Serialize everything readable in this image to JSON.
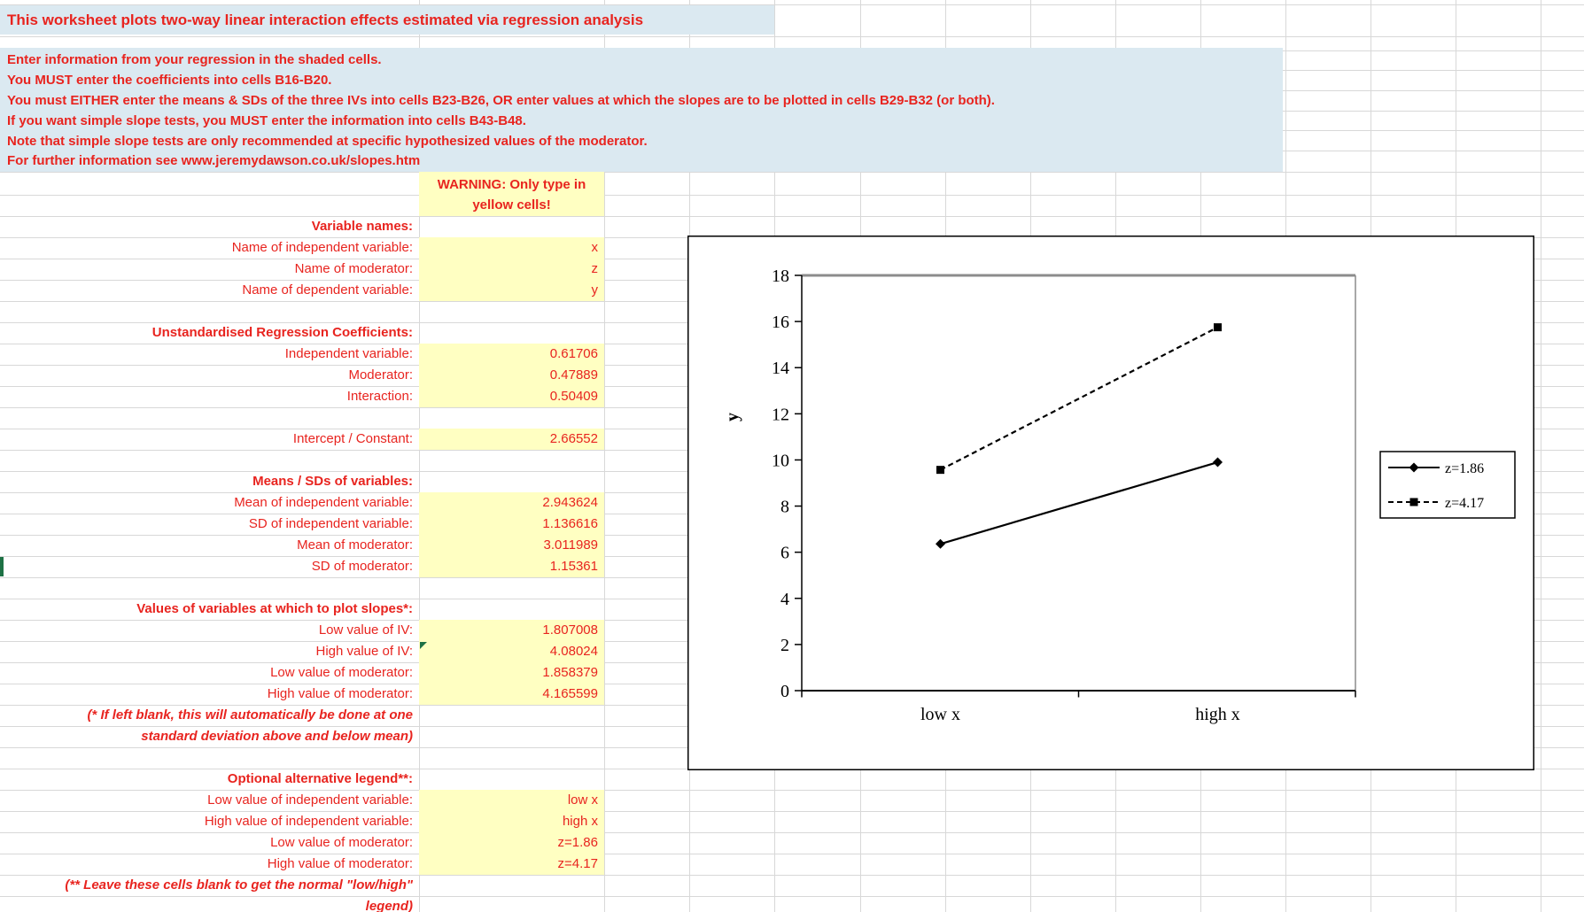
{
  "colors": {
    "text_red": "#e8241f",
    "band_blue": "#dbe9f1",
    "cell_yellow": "#ffffc2",
    "gridline_gray": "#d8d8d8",
    "marker_green": "#1e7145",
    "chart_frame_gray": "#8c8c8c",
    "series_black": "#000000"
  },
  "title": "This worksheet plots two-way linear interaction effects estimated via regression analysis",
  "instructions": [
    "Enter information from your regression in the shaded cells.",
    "You MUST enter the coefficients into cells B16-B20.",
    "You must EITHER enter the means & SDs of the three IVs into cells B23-B26, OR enter values at which the slopes are to be plotted in cells B29-B32 (or both).",
    "If you want simple slope tests, you MUST enter the information into cells B43-B48.",
    "Note that simple slope tests are only recommended at specific hypothesized values of the moderator.",
    "For further information see www.jeremydawson.co.uk/slopes.htm"
  ],
  "warning": {
    "line1": "WARNING: Only type in",
    "line2": "yellow cells!"
  },
  "rows": [
    {
      "type": "header",
      "label": "Variable names:"
    },
    {
      "type": "field",
      "label": "Name of independent variable:",
      "value": "x",
      "yellow": true
    },
    {
      "type": "field",
      "label": "Name of moderator:",
      "value": "z",
      "yellow": true
    },
    {
      "type": "field",
      "label": "Name of dependent variable:",
      "value": "y",
      "yellow": true
    },
    {
      "type": "blank"
    },
    {
      "type": "header",
      "label": "Unstandardised Regression Coefficients:"
    },
    {
      "type": "field",
      "label": "Independent variable:",
      "value": "0.61706",
      "yellow": true
    },
    {
      "type": "field",
      "label": "Moderator:",
      "value": "0.47889",
      "yellow": true
    },
    {
      "type": "field",
      "label": "Interaction:",
      "value": "0.50409",
      "yellow": true
    },
    {
      "type": "blank"
    },
    {
      "type": "field",
      "label": "Intercept / Constant:",
      "value": "2.66552",
      "yellow": true
    },
    {
      "type": "blank"
    },
    {
      "type": "header",
      "label": "Means / SDs of variables:"
    },
    {
      "type": "field",
      "label": "Mean of independent variable:",
      "value": "2.943624",
      "yellow": true
    },
    {
      "type": "field",
      "label": "SD of independent variable:",
      "value": "1.136616",
      "yellow": true
    },
    {
      "type": "field",
      "label": "Mean of moderator:",
      "value": "3.011989",
      "yellow": true
    },
    {
      "type": "field",
      "label": "SD of moderator:",
      "value": "1.15361",
      "yellow": true,
      "row_marker": true
    },
    {
      "type": "blank"
    },
    {
      "type": "header",
      "label": "Values of variables at which to plot slopes*:"
    },
    {
      "type": "field",
      "label": "Low value of IV:",
      "value": "1.807008",
      "yellow": true
    },
    {
      "type": "field",
      "label": "High value of IV:",
      "value": "4.08024",
      "yellow": true,
      "comment_flag": true
    },
    {
      "type": "field",
      "label": "Low value of moderator:",
      "value": "1.858379",
      "yellow": true
    },
    {
      "type": "field",
      "label": "High value of moderator:",
      "value": "4.165599",
      "yellow": true
    },
    {
      "type": "note",
      "label": "(* If left blank, this will automatically be done at one"
    },
    {
      "type": "note",
      "label": "standard deviation above and below mean)"
    },
    {
      "type": "blank"
    },
    {
      "type": "header",
      "label": "Optional alternative legend**:"
    },
    {
      "type": "field",
      "label": "Low value of independent variable:",
      "value": "low x",
      "yellow": true
    },
    {
      "type": "field",
      "label": "High value of independent variable:",
      "value": "high x",
      "yellow": true
    },
    {
      "type": "field",
      "label": "Low value of moderator:",
      "value": "z=1.86",
      "yellow": true
    },
    {
      "type": "field",
      "label": "High value of moderator:",
      "value": "z=4.17",
      "yellow": true
    },
    {
      "type": "note",
      "label": "(** Leave these cells blank to get the normal \"low/high\""
    },
    {
      "type": "note",
      "label": "legend)"
    }
  ],
  "chart_data": {
    "type": "line",
    "categories": [
      "low x",
      "high x"
    ],
    "series": [
      {
        "name": "z=1.86",
        "values": [
          6.36,
          9.9
        ],
        "style": "solid",
        "marker": "diamond"
      },
      {
        "name": "z=4.17",
        "values": [
          9.57,
          15.75
        ],
        "style": "dashed",
        "marker": "square"
      }
    ],
    "title": "",
    "xlabel": "",
    "ylabel": "y",
    "ylim": [
      0,
      18
    ],
    "ytick_step": 2,
    "grid": false,
    "legend_position": "right"
  }
}
